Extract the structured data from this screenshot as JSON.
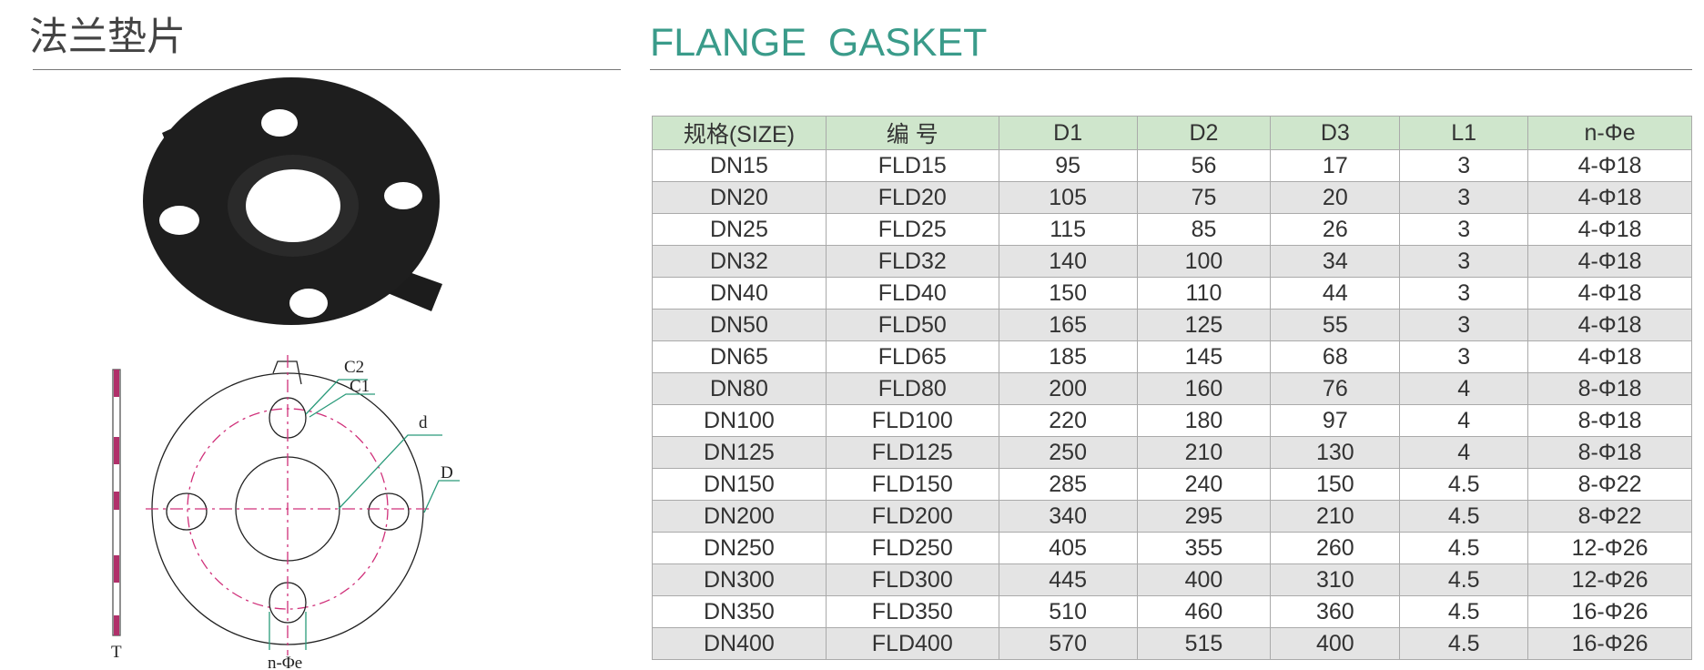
{
  "header": {
    "title": "法兰垫片",
    "title_en": "FLANGE  GASKET"
  },
  "diagram": {
    "labels": {
      "c2": "C2",
      "c1": "C1",
      "d": "d",
      "D": "D",
      "t": "T",
      "n": "n-Φe"
    }
  },
  "table": {
    "header": [
      "规格(SIZE)",
      "编  号",
      "D1",
      "D2",
      "D3",
      "L1",
      "n-Φe"
    ],
    "rows": [
      [
        "DN15",
        "FLD15",
        "95",
        "56",
        "17",
        "3",
        "4-Φ18"
      ],
      [
        "DN20",
        "FLD20",
        "105",
        "75",
        "20",
        "3",
        "4-Φ18"
      ],
      [
        "DN25",
        "FLD25",
        "115",
        "85",
        "26",
        "3",
        "4-Φ18"
      ],
      [
        "DN32",
        "FLD32",
        "140",
        "100",
        "34",
        "3",
        "4-Φ18"
      ],
      [
        "DN40",
        "FLD40",
        "150",
        "110",
        "44",
        "3",
        "4-Φ18"
      ],
      [
        "DN50",
        "FLD50",
        "165",
        "125",
        "55",
        "3",
        "4-Φ18"
      ],
      [
        "DN65",
        "FLD65",
        "185",
        "145",
        "68",
        "3",
        "4-Φ18"
      ],
      [
        "DN80",
        "FLD80",
        "200",
        "160",
        "76",
        "4",
        "8-Φ18"
      ],
      [
        "DN100",
        "FLD100",
        "220",
        "180",
        "97",
        "4",
        "8-Φ18"
      ],
      [
        "DN125",
        "FLD125",
        "250",
        "210",
        "130",
        "4",
        "8-Φ18"
      ],
      [
        "DN150",
        "FLD150",
        "285",
        "240",
        "150",
        "4.5",
        "8-Φ22"
      ],
      [
        "DN200",
        "FLD200",
        "340",
        "295",
        "210",
        "4.5",
        "8-Φ22"
      ],
      [
        "DN250",
        "FLD250",
        "405",
        "355",
        "260",
        "4.5",
        "12-Φ26"
      ],
      [
        "DN300",
        "FLD300",
        "445",
        "400",
        "310",
        "4.5",
        "12-Φ26"
      ],
      [
        "DN350",
        "FLD350",
        "510",
        "460",
        "360",
        "4.5",
        "16-Φ26"
      ],
      [
        "DN400",
        "FLD400",
        "570",
        "515",
        "400",
        "4.5",
        "16-Φ26"
      ]
    ]
  }
}
